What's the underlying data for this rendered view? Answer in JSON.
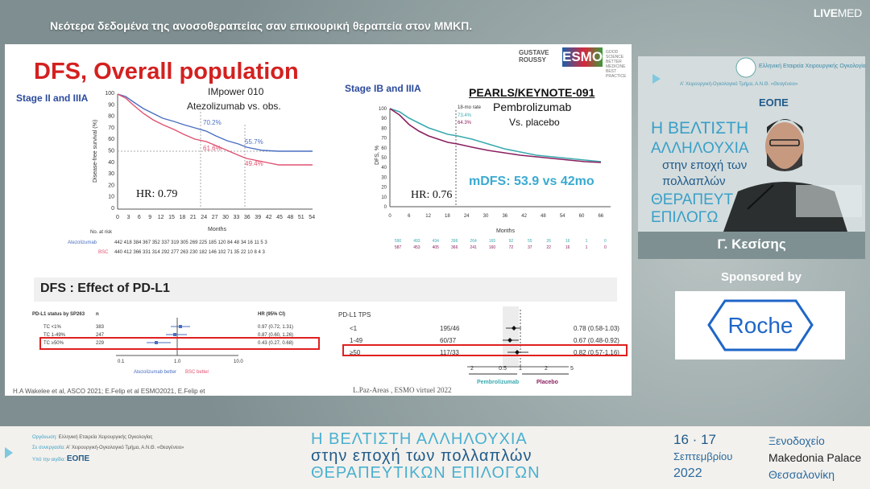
{
  "header": {
    "title": "Νεότερα δεδομένα της ανοσοθεραπείας σαν επικουρική θεραπεία στον ΜΜΚΠ.",
    "brand_bold": "LIVE",
    "brand_thin": "MED"
  },
  "slide": {
    "title": "DFS, Overall population",
    "logos": {
      "gustave": "GUSTAVE ROUSSY",
      "esmo": "ESMO",
      "esmo_sub": "GOOD SCIENCE BETTER MEDICINE BEST PRACTICE"
    },
    "left_chart": {
      "stage": "Stage II and IIIA",
      "trial": "IMpower 010",
      "comparison": "Atezolizumab vs. obs.",
      "hr": "HR: 0.79",
      "ylabel": "Disease-free survival (%)",
      "xlabel": "Months",
      "y_ticks": [
        "0",
        "10",
        "20",
        "30",
        "40",
        "50",
        "60",
        "70",
        "80",
        "90",
        "100"
      ],
      "x_ticks": [
        "0",
        "3",
        "6",
        "9",
        "12",
        "15",
        "18",
        "21",
        "24",
        "27",
        "30",
        "33",
        "36",
        "39",
        "42",
        "45",
        "48",
        "51",
        "54"
      ],
      "labels": [
        "70.2%",
        "55.7%",
        "61.6%",
        "49.4%"
      ],
      "no_at_risk": "No. at risk",
      "risk_rows": [
        {
          "name": "Atezolizumab",
          "values": "442 418 384 367 352 337 319 305 269 225 185 120 84 48 34 16 11 5 3"
        },
        {
          "name": "BSC",
          "values": "440 412 366 331 314 292 277 263 230 182 146 102 71 35 22 10 8 4 3"
        }
      ]
    },
    "right_chart": {
      "stage": "Stage IB and IIIA",
      "trial": "PEARLS/KEYNOTE-091",
      "drug": "Pembrolizumab",
      "comparison": "Vs. placebo",
      "mdfs": "mDFS: 53.9 vs 42mo",
      "hr": "HR: 0.76",
      "ylabel": "DFS, %",
      "xlabel": "Months",
      "rate_label": "18-mo rate",
      "rate_values": [
        "73.4%",
        "64.3%"
      ],
      "y_ticks": [
        "0",
        "10",
        "20",
        "30",
        "40",
        "50",
        "60",
        "70",
        "80",
        "90",
        "100"
      ],
      "x_ticks": [
        "0",
        "6",
        "12",
        "18",
        "24",
        "30",
        "36",
        "42",
        "48",
        "54",
        "60",
        "66"
      ],
      "risk_row1": [
        "590",
        "493",
        "434",
        "396",
        "264",
        "165",
        "92",
        "55",
        "26",
        "16",
        "1",
        "0"
      ],
      "risk_row2": [
        "587",
        "453",
        "405",
        "366",
        "241",
        "160",
        "72",
        "37",
        "22",
        "16",
        "1",
        "0"
      ]
    },
    "pdl1_section": {
      "title": "DFS : Effect of PD-L1",
      "left_forest": {
        "col1": "PD-L1 status by SP263",
        "col2": "n",
        "col3": "HR (95% CI)",
        "rows": [
          {
            "label": "TC <1%",
            "n": "383",
            "hr": "0.97 (0.72, 1.31)"
          },
          {
            "label": "TC 1-49%",
            "n": "247",
            "hr": "0.87 (0.60, 1.26)"
          },
          {
            "label": "TC ≥50%",
            "n": "229",
            "hr": "0.43 (0.27, 0.68)"
          }
        ],
        "axis": [
          "0.1",
          "1.0",
          "10.0"
        ],
        "favor_left": "Atezolizumab better",
        "favor_right": "BSC better"
      },
      "right_forest": {
        "title": "PD-L1 TPS",
        "rows": [
          {
            "label": "<1",
            "counts": "195/46",
            "hr": "0.78 (0.58-1.03)"
          },
          {
            "label": "1-49",
            "counts": "60/37",
            "hr": "0.67 (0.48-0.92)"
          },
          {
            "label": "≥50",
            "counts": "117/33",
            "hr": "0.82 (0.57-1.16)"
          }
        ],
        "axis": [
          "2",
          "0.5",
          "1",
          "2",
          "5"
        ],
        "favor_left": "Pembrolizumab",
        "favor_right": "Placebo"
      }
    },
    "footer_left": "H.A Wakelee et al, ASCO 2021; E.Felip et al ESMO2021, E.Felip et",
    "footer_right": "L.Paz-Areas , ESMO virtuel 2022"
  },
  "speaker": {
    "name": "Γ. Κεσίσης",
    "video_text": [
      "Η ΒΕΛΤΙΣΤΗ",
      "ΑΛΛΗΛΟΥΧΙΑ",
      "στην εποχή των",
      "πολλαπλών",
      "ΘΕΡΑΠΕΥΤ",
      "ΕΠΙΛΟΓΩ"
    ]
  },
  "sponsor": {
    "label": "Sponsored by",
    "name": "Roche"
  },
  "banner": {
    "organizer_label": "Οργάνωση:",
    "organizer": "Ελληνική Εταιρεία Χειρουργικής Ογκολογίας",
    "collab_label": "Σε συνεργασία:",
    "collab": "Α' Χειρουργική-Ογκολογικό Τμήμα, Α.Ν.Θ. «Θεαγένειο»",
    "support_label": "Υπό την αιγίδα:",
    "support": "ΕΟΠΕ",
    "title_line1": "Η ΒΕΛΤΙΣΤΗ ΑΛΛΗΛΟΥΧΙΑ",
    "title_line2": "στην εποχή των πολλαπλών",
    "title_line3": "ΘΕΡΑΠΕΥΤΙΚΩΝ ΕΠΙΛΟΓΩΝ",
    "dates": "16 · 17",
    "month": "Σεπτεμβρίου",
    "year": "2022",
    "venue1": "Ξενοδοχείο",
    "venue2": "Makedonia Palace",
    "venue3": "Θεσσαλονίκη"
  },
  "colors": {
    "title_red": "#d42020",
    "stage_blue": "#2b4a9c",
    "mdfs_cyan": "#3aaad0",
    "highlight_red": "#e02020",
    "roche_blue": "#1f66c8"
  }
}
